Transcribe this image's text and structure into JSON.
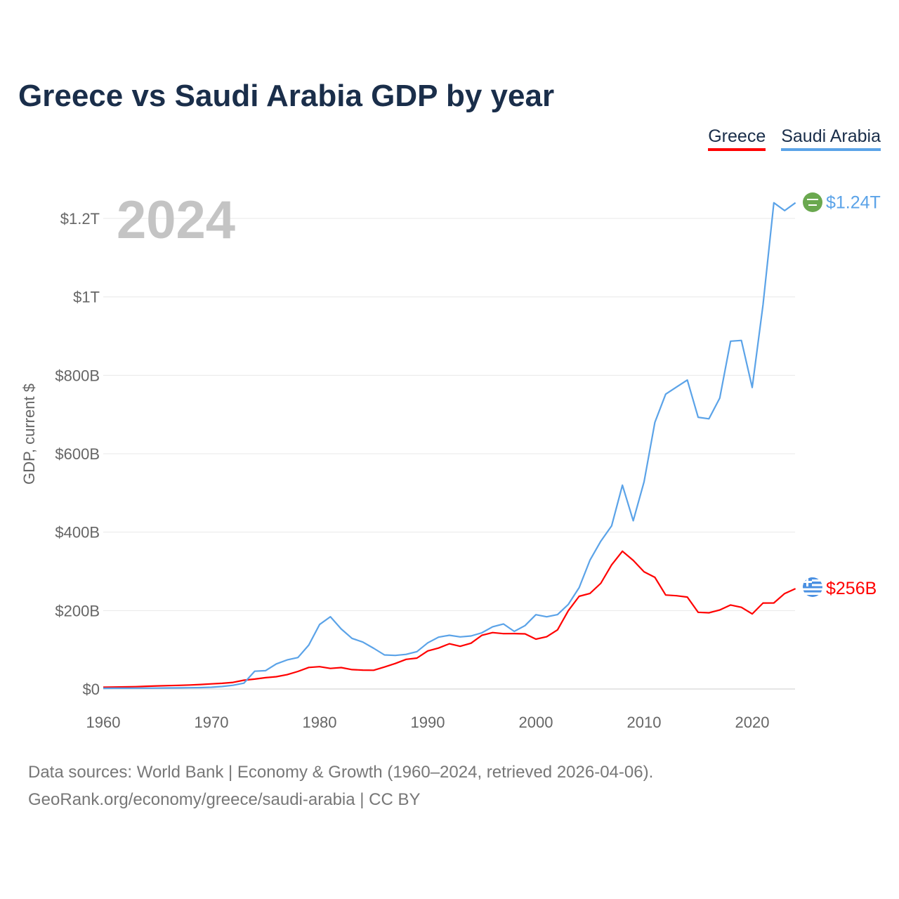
{
  "chart_data": {
    "type": "line",
    "title": "Greece vs Saudi Arabia GDP by year",
    "xlabel": "",
    "ylabel": "GDP, current $",
    "xlim": [
      1960,
      2024
    ],
    "ylim": [
      0,
      1300000000000.0
    ],
    "x_ticks": [
      1960,
      1970,
      1980,
      1990,
      2000,
      2010,
      2020
    ],
    "x_tick_labels": [
      "1960",
      "1970",
      "1980",
      "1990",
      "2000",
      "2010",
      "2020"
    ],
    "y_ticks": [
      0,
      200000000000.0,
      400000000000.0,
      600000000000.0,
      800000000000.0,
      1000000000000.0,
      1200000000000.0
    ],
    "y_tick_labels": [
      "$0",
      "$200B",
      "$400B",
      "$600B",
      "$800B",
      "$1T",
      "$1.2T"
    ],
    "grid": true,
    "legend_position": "top-right",
    "current_year": "2024",
    "units": "billions USD",
    "series": [
      {
        "name": "Greece",
        "color": "#ff0000",
        "end_label": "$256B",
        "flag": "greece-flag",
        "start_year": 1960,
        "values": [
          4.4,
          5,
          5.3,
          6,
          6.9,
          7.8,
          8.6,
          9.4,
          10.2,
          11.5,
          13.1,
          14.5,
          16.9,
          22.4,
          25.3,
          28.9,
          31.4,
          36.5,
          44.7,
          54.9,
          57,
          52.5,
          54.6,
          49.4,
          48.1,
          47.9,
          56.1,
          65,
          75.5,
          78.8,
          97.1,
          104.4,
          115.4,
          108.9,
          116.8,
          136.9,
          143.9,
          141.1,
          141.4,
          140.6,
          127.1,
          133.3,
          150.8,
          199.9,
          236.5,
          243.8,
          269.5,
          316.5,
          351.5,
          328,
          298.9,
          284.8,
          239.7,
          237.9,
          234.4,
          195.6,
          194.3,
          201.5,
          214.2,
          208.4,
          191.4,
          219.2,
          219.4,
          243.5,
          256
        ]
      },
      {
        "name": "Saudi Arabia",
        "color": "#5ba3e8",
        "end_label": "$1.24T",
        "flag": "saudi-arabia-flag",
        "start_year": 1960,
        "values": [
          1.8,
          1.9,
          2,
          2.1,
          2.2,
          2.4,
          2.6,
          2.9,
          3.2,
          3.5,
          4.5,
          6.5,
          9.5,
          14.9,
          45.4,
          46.8,
          64,
          74.2,
          80.3,
          111.9,
          164.5,
          184.3,
          153.2,
          129.2,
          119.6,
          103.9,
          86.9,
          85.7,
          88.3,
          95.3,
          117.6,
          132.2,
          137.1,
          132.9,
          135.2,
          143.3,
          158.7,
          165.9,
          146.8,
          161.7,
          189.5,
          184.1,
          189.6,
          215.8,
          258.7,
          328.5,
          376.9,
          415.9,
          519.8,
          429.1,
          528.2,
          680,
          752,
          770,
          788,
          693,
          689,
          742,
          887,
          889,
          769,
          980,
          1240,
          1220,
          1240
        ]
      }
    ]
  },
  "legend": {
    "items": [
      "Greece",
      "Saudi Arabia"
    ]
  },
  "footer": {
    "line1": "Data sources: World Bank | Economy & Growth (1960–2024, retrieved 2026-04-06).",
    "line2": "GeoRank.org/economy/greece/saudi-arabia | CC BY"
  }
}
